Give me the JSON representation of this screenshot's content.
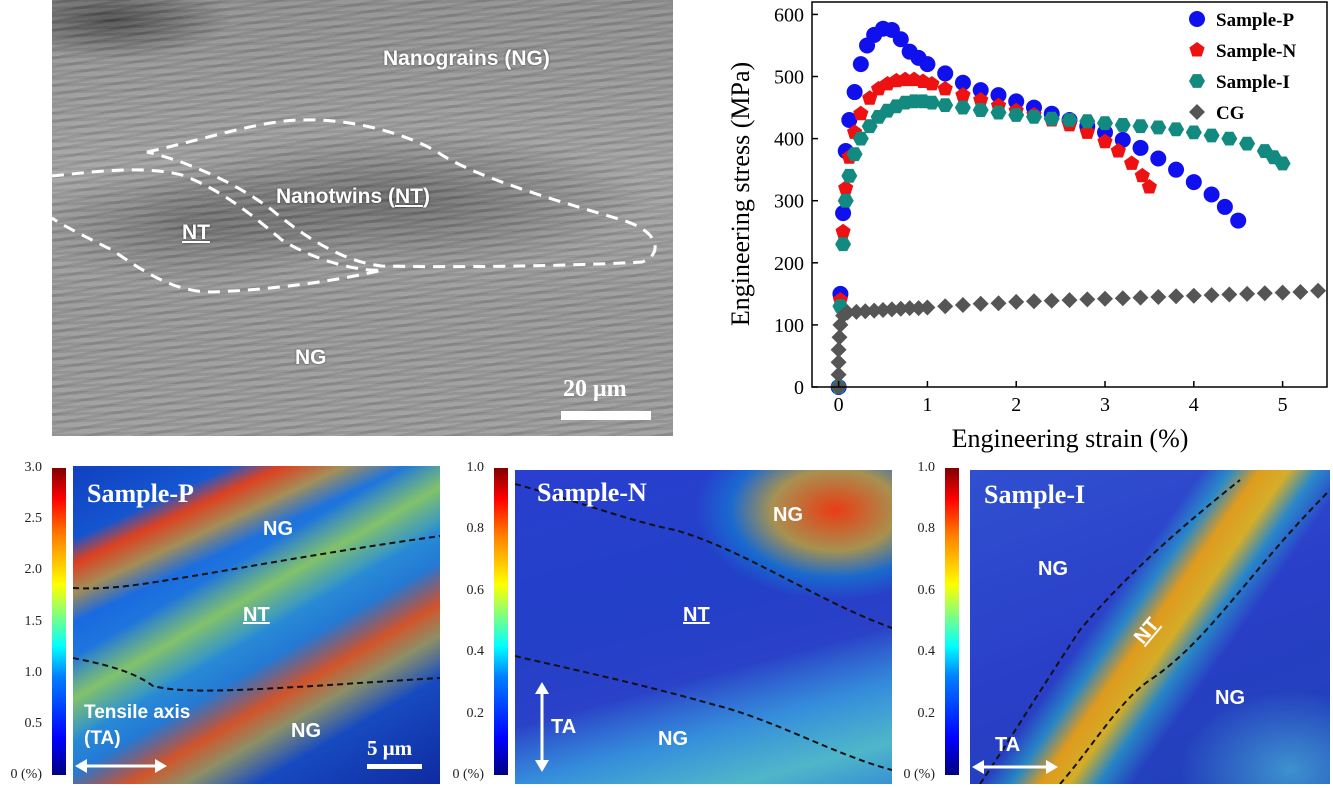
{
  "sem_panel": {
    "labels": {
      "nanograins": "Nanograins (NG)",
      "nanotwins_prefix": "Nanotwins (",
      "nanotwins_abbr": "NT",
      "nanotwins_suffix": ")",
      "nt": "NT",
      "ng": "NG"
    },
    "scale_bar": "20 μm"
  },
  "chart_data": {
    "type": "scatter",
    "xlabel": "Engineering strain (%)",
    "ylabel": "Engineering stress (MPa)",
    "xlim": [
      -0.3,
      5.5
    ],
    "ylim": [
      0,
      620
    ],
    "x_ticks": [
      0,
      1,
      2,
      3,
      4,
      5
    ],
    "y_ticks": [
      0,
      100,
      200,
      300,
      400,
      500,
      600
    ],
    "legend_position": "top-right",
    "series": [
      {
        "name": "Sample-P",
        "color": "#1010ee",
        "marker": "circle",
        "x": [
          0.0,
          0.02,
          0.05,
          0.08,
          0.12,
          0.18,
          0.25,
          0.32,
          0.4,
          0.5,
          0.6,
          0.7,
          0.8,
          0.9,
          1.0,
          1.2,
          1.4,
          1.6,
          1.8,
          2.0,
          2.2,
          2.4,
          2.6,
          2.8,
          3.0,
          3.2,
          3.4,
          3.6,
          3.8,
          4.0,
          4.2,
          4.35,
          4.5
        ],
        "y": [
          0,
          150,
          280,
          380,
          430,
          475,
          520,
          550,
          567,
          577,
          575,
          560,
          540,
          530,
          520,
          505,
          490,
          478,
          470,
          460,
          450,
          440,
          430,
          420,
          410,
          398,
          385,
          368,
          350,
          330,
          310,
          290,
          268
        ]
      },
      {
        "name": "Sample-N",
        "color": "#ee1111",
        "marker": "pentagon",
        "x": [
          0.0,
          0.02,
          0.05,
          0.08,
          0.12,
          0.18,
          0.25,
          0.35,
          0.45,
          0.55,
          0.65,
          0.75,
          0.85,
          0.95,
          1.05,
          1.2,
          1.4,
          1.6,
          1.8,
          2.0,
          2.2,
          2.4,
          2.6,
          2.8,
          3.0,
          3.15,
          3.3,
          3.42,
          3.5
        ],
        "y": [
          0,
          140,
          250,
          320,
          370,
          410,
          440,
          465,
          480,
          488,
          493,
          495,
          495,
          492,
          488,
          480,
          470,
          462,
          453,
          445,
          438,
          430,
          422,
          410,
          395,
          380,
          360,
          340,
          322
        ]
      },
      {
        "name": "Sample-I",
        "color": "#128a80",
        "marker": "hexagon",
        "x": [
          0.0,
          0.02,
          0.05,
          0.08,
          0.12,
          0.18,
          0.25,
          0.35,
          0.45,
          0.55,
          0.65,
          0.75,
          0.85,
          0.95,
          1.05,
          1.2,
          1.4,
          1.6,
          1.8,
          2.0,
          2.2,
          2.4,
          2.6,
          2.8,
          3.0,
          3.2,
          3.4,
          3.6,
          3.8,
          4.0,
          4.2,
          4.4,
          4.6,
          4.8,
          4.9,
          5.0
        ],
        "y": [
          0,
          130,
          230,
          300,
          340,
          375,
          400,
          420,
          435,
          445,
          452,
          458,
          460,
          460,
          458,
          454,
          450,
          446,
          442,
          438,
          435,
          432,
          430,
          428,
          425,
          422,
          420,
          418,
          415,
          410,
          405,
          400,
          392,
          380,
          370,
          360
        ]
      },
      {
        "name": "CG",
        "color": "#555555",
        "marker": "diamond",
        "x": [
          0.0,
          0.0,
          0.0,
          0.0,
          0.01,
          0.02,
          0.05,
          0.1,
          0.2,
          0.3,
          0.4,
          0.5,
          0.6,
          0.7,
          0.8,
          0.9,
          1.0,
          1.2,
          1.4,
          1.6,
          1.8,
          2.0,
          2.2,
          2.4,
          2.6,
          2.8,
          3.0,
          3.2,
          3.4,
          3.6,
          3.8,
          4.0,
          4.2,
          4.4,
          4.6,
          4.8,
          5.0,
          5.2,
          5.4
        ],
        "y": [
          0,
          20,
          40,
          60,
          80,
          100,
          115,
          120,
          121,
          122,
          123,
          124,
          125,
          126,
          127,
          127,
          128,
          130,
          132,
          134,
          135,
          137,
          138,
          139,
          140,
          141,
          142,
          143,
          144,
          145,
          146,
          147,
          148,
          149,
          150,
          151,
          152,
          153,
          155
        ]
      }
    ]
  },
  "strain_maps": [
    {
      "title": "Sample-P",
      "colorbar_ticks": [
        "3.0",
        "2.5",
        "2.0",
        "1.5",
        "1.0",
        "0.5",
        "0 (%)"
      ],
      "labels": {
        "ng_top": "NG",
        "nt": "NT",
        "ng_bottom": "NG",
        "axis_line1": "Tensile axis",
        "axis_line2": "(TA)",
        "scale": "5 μm"
      }
    },
    {
      "title": "Sample-N",
      "colorbar_ticks": [
        "1.0",
        "0.8",
        "0.6",
        "0.4",
        "0.2",
        "0 (%)"
      ],
      "labels": {
        "ng_top": "NG",
        "nt": "NT",
        "ng_bottom": "NG",
        "ta": "TA"
      }
    },
    {
      "title": "Sample-I",
      "colorbar_ticks": [
        "1.0",
        "0.8",
        "0.6",
        "0.4",
        "0.2",
        "0 (%)"
      ],
      "labels": {
        "ng_left": "NG",
        "nt": "NT",
        "ng_right": "NG",
        "ta": "TA"
      }
    }
  ]
}
